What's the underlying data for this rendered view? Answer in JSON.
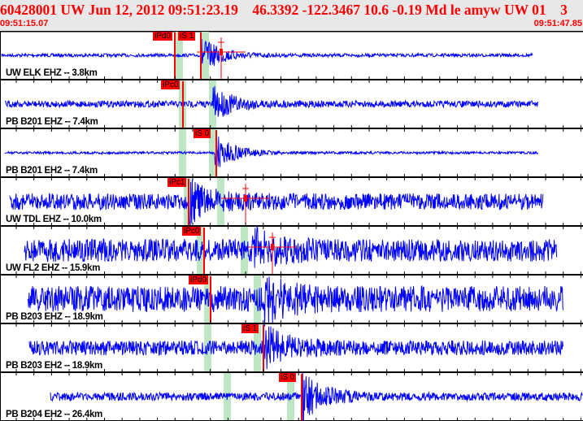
{
  "header": {
    "title": "60428001 UW Jun 12, 2012 09:51:23.19    46.3392 -122.3467 10.6 -0.19 Md le amyw UW 01    3",
    "start_time": "09:51:15.07",
    "end_time": "09:51:47.85"
  },
  "colors": {
    "trace": "#0000ff",
    "pick": "#ff0000",
    "window": "#bfe6c4",
    "title": "#ff0000"
  },
  "channels": [
    {
      "label": "UW ELK EHZ -- 3.8km",
      "picks": [
        {
          "label": "iPd0"
        },
        {
          "label": "iS 1"
        }
      ]
    },
    {
      "label": "PB B201 EHZ -- 7.4km",
      "picks": [
        {
          "label": "iPc0"
        }
      ]
    },
    {
      "label": "PB B201 EH2 -- 7.4km",
      "picks": [
        {
          "label": "iS 0"
        }
      ]
    },
    {
      "label": "UW TDL EHZ -- 10.0km",
      "picks": [
        {
          "label": "iPc1"
        }
      ]
    },
    {
      "label": "UW FL2 EHZ -- 15.9km",
      "picks": [
        {
          "label": "iPc0"
        }
      ]
    },
    {
      "label": "PB B203 EHZ -- 18.9km",
      "picks": [
        {
          "label": "iPd0"
        }
      ]
    },
    {
      "label": "PB B203 EH2 -- 18.9km",
      "picks": [
        {
          "label": "iS 1"
        }
      ]
    },
    {
      "label": "PB B204 EH2 -- 26.4km",
      "picks": [
        {
          "label": "iS 0"
        }
      ]
    }
  ]
}
